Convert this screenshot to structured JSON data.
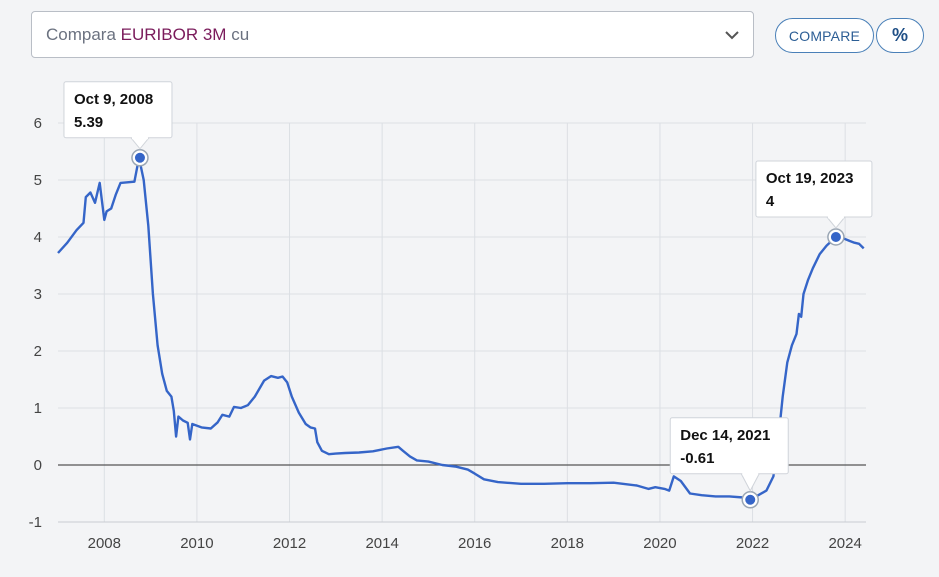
{
  "selector": {
    "prefix": "Compara",
    "symbol": "EURIBOR 3M",
    "suffix": "cu"
  },
  "buttons": {
    "compare_label": "COMPARE",
    "percent_label": "%"
  },
  "colors": {
    "line": "#3565c8",
    "grid": "#dcdfe4",
    "zero_line": "#555555",
    "symbol": "#7a1b5b",
    "button_border": "#4a80b8"
  },
  "chart_data": {
    "type": "line",
    "xlim": [
      2007.0,
      2024.45
    ],
    "ylim": [
      -1,
      6
    ],
    "x_ticks": [
      2008,
      2010,
      2012,
      2014,
      2016,
      2018,
      2020,
      2022,
      2024
    ],
    "y_ticks": [
      -1,
      0,
      1,
      2,
      3,
      4,
      5,
      6
    ],
    "grid": true,
    "series": [
      {
        "points": [
          [
            2007.0,
            3.72
          ],
          [
            2007.2,
            3.9
          ],
          [
            2007.4,
            4.12
          ],
          [
            2007.55,
            4.25
          ],
          [
            2007.6,
            4.7
          ],
          [
            2007.7,
            4.78
          ],
          [
            2007.8,
            4.6
          ],
          [
            2007.9,
            4.95
          ],
          [
            2008.0,
            4.3
          ],
          [
            2008.05,
            4.45
          ],
          [
            2008.15,
            4.5
          ],
          [
            2008.25,
            4.75
          ],
          [
            2008.35,
            4.95
          ],
          [
            2008.5,
            4.96
          ],
          [
            2008.65,
            4.97
          ],
          [
            2008.75,
            5.39
          ],
          [
            2008.85,
            5.0
          ],
          [
            2008.95,
            4.2
          ],
          [
            2009.05,
            3.0
          ],
          [
            2009.15,
            2.1
          ],
          [
            2009.25,
            1.6
          ],
          [
            2009.35,
            1.3
          ],
          [
            2009.45,
            1.2
          ],
          [
            2009.5,
            0.95
          ],
          [
            2009.55,
            0.5
          ],
          [
            2009.6,
            0.85
          ],
          [
            2009.7,
            0.78
          ],
          [
            2009.8,
            0.74
          ],
          [
            2009.85,
            0.45
          ],
          [
            2009.9,
            0.72
          ],
          [
            2010.1,
            0.66
          ],
          [
            2010.3,
            0.64
          ],
          [
            2010.45,
            0.75
          ],
          [
            2010.55,
            0.88
          ],
          [
            2010.7,
            0.85
          ],
          [
            2010.8,
            1.02
          ],
          [
            2010.95,
            1.0
          ],
          [
            2011.1,
            1.05
          ],
          [
            2011.25,
            1.2
          ],
          [
            2011.45,
            1.48
          ],
          [
            2011.6,
            1.56
          ],
          [
            2011.75,
            1.53
          ],
          [
            2011.85,
            1.55
          ],
          [
            2011.95,
            1.45
          ],
          [
            2012.05,
            1.2
          ],
          [
            2012.2,
            0.92
          ],
          [
            2012.35,
            0.72
          ],
          [
            2012.45,
            0.66
          ],
          [
            2012.55,
            0.64
          ],
          [
            2012.6,
            0.4
          ],
          [
            2012.7,
            0.25
          ],
          [
            2012.85,
            0.19
          ],
          [
            2013.0,
            0.2
          ],
          [
            2013.2,
            0.21
          ],
          [
            2013.5,
            0.22
          ],
          [
            2013.8,
            0.24
          ],
          [
            2014.1,
            0.29
          ],
          [
            2014.35,
            0.32
          ],
          [
            2014.45,
            0.25
          ],
          [
            2014.6,
            0.15
          ],
          [
            2014.75,
            0.08
          ],
          [
            2015.0,
            0.06
          ],
          [
            2015.3,
            0.0
          ],
          [
            2015.6,
            -0.03
          ],
          [
            2015.85,
            -0.08
          ],
          [
            2016.0,
            -0.15
          ],
          [
            2016.2,
            -0.25
          ],
          [
            2016.5,
            -0.3
          ],
          [
            2017.0,
            -0.33
          ],
          [
            2017.5,
            -0.33
          ],
          [
            2018.0,
            -0.32
          ],
          [
            2018.5,
            -0.32
          ],
          [
            2019.0,
            -0.31
          ],
          [
            2019.5,
            -0.36
          ],
          [
            2019.75,
            -0.42
          ],
          [
            2019.9,
            -0.39
          ],
          [
            2020.1,
            -0.42
          ],
          [
            2020.2,
            -0.45
          ],
          [
            2020.3,
            -0.2
          ],
          [
            2020.45,
            -0.28
          ],
          [
            2020.65,
            -0.5
          ],
          [
            2020.9,
            -0.53
          ],
          [
            2021.2,
            -0.55
          ],
          [
            2021.5,
            -0.55
          ],
          [
            2021.8,
            -0.57
          ],
          [
            2021.95,
            -0.61
          ],
          [
            2022.1,
            -0.54
          ],
          [
            2022.3,
            -0.45
          ],
          [
            2022.45,
            -0.2
          ],
          [
            2022.55,
            0.4
          ],
          [
            2022.65,
            1.2
          ],
          [
            2022.75,
            1.8
          ],
          [
            2022.85,
            2.1
          ],
          [
            2022.95,
            2.3
          ],
          [
            2023.0,
            2.65
          ],
          [
            2023.05,
            2.6
          ],
          [
            2023.1,
            3.0
          ],
          [
            2023.2,
            3.25
          ],
          [
            2023.3,
            3.45
          ],
          [
            2023.45,
            3.7
          ],
          [
            2023.6,
            3.85
          ],
          [
            2023.8,
            4.0
          ],
          [
            2023.95,
            3.98
          ],
          [
            2024.1,
            3.93
          ],
          [
            2024.2,
            3.9
          ],
          [
            2024.3,
            3.88
          ],
          [
            2024.4,
            3.8
          ]
        ]
      }
    ],
    "annotations": [
      {
        "date": "Oct 9, 2008",
        "value": "5.39",
        "x": 2008.77,
        "y": 5.39
      },
      {
        "date": "Oct 19, 2023",
        "value": "4",
        "x": 2023.8,
        "y": 4.0
      },
      {
        "date": "Dec 14, 2021",
        "value": "-0.61",
        "x": 2021.95,
        "y": -0.61
      }
    ]
  }
}
